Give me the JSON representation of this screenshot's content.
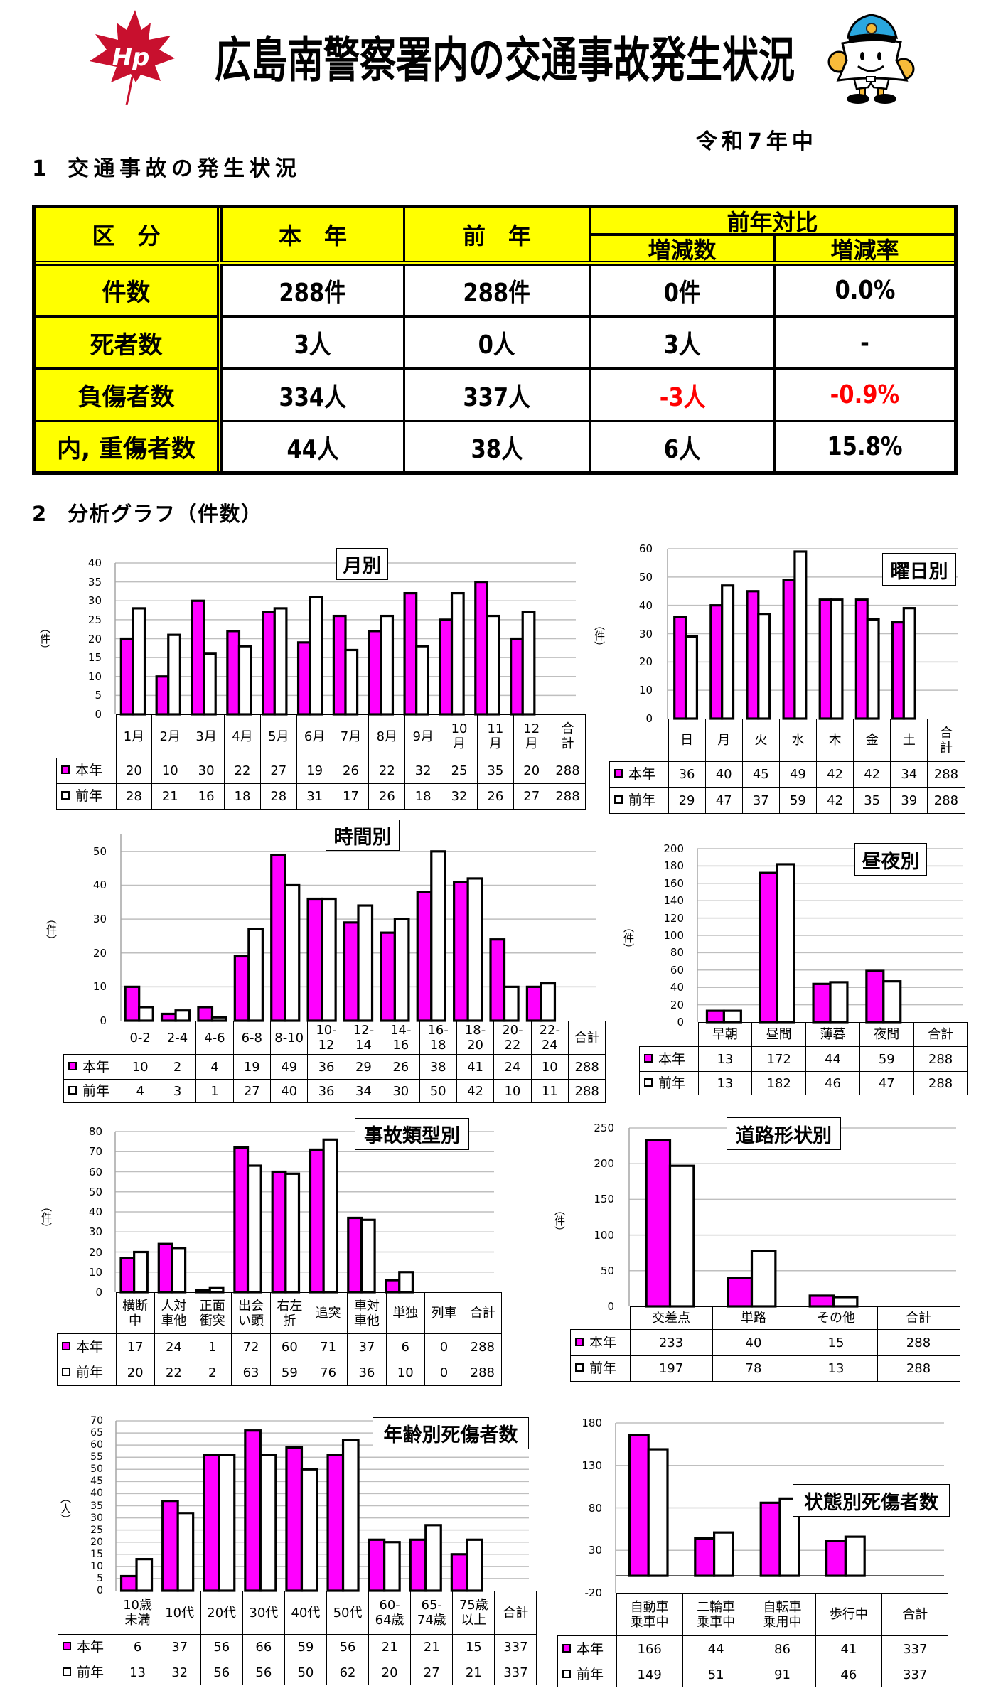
{
  "header": {
    "title": "広島南警察署内の交通事故発生状況",
    "period": "令和7年中",
    "logo_text": "Hp"
  },
  "sections": {
    "s1": {
      "number": "1",
      "text": "交通事故の発生状況"
    },
    "s2": {
      "number": "2",
      "text": "分析グラフ（件数）"
    }
  },
  "colors": {
    "this_year": "#FF00FF",
    "last_year": "#FFFFFF",
    "header_bg": "#FFFF00",
    "negative": "#FF0000",
    "gridline": "#BFBFBF",
    "axis": "#A6A6A6"
  },
  "summary": {
    "headers": {
      "category": "区　分",
      "this_year": "本　年",
      "last_year": "前　年",
      "comparison": "前年対比",
      "change": "増減数",
      "rate": "増減率"
    },
    "rows": [
      {
        "label": "件数",
        "this_year": "288件",
        "last_year": "288件",
        "change": "0件",
        "rate": "0.0%"
      },
      {
        "label": "死者数",
        "this_year": "3人",
        "last_year": "0人",
        "change": "3人",
        "rate": "-"
      },
      {
        "label": "負傷者数",
        "this_year": "334人",
        "last_year": "337人",
        "change": "-3人",
        "rate": "-0.9%"
      },
      {
        "label": "内, 重傷者数",
        "this_year": "44人",
        "last_year": "38人",
        "change": "6人",
        "rate": "15.8%"
      }
    ]
  },
  "chart_data": [
    {
      "type": "bar",
      "title": "月別",
      "xlabel": "",
      "ylabel": "（件）",
      "ylim": [
        0,
        40
      ],
      "yticks": [
        0,
        5,
        10,
        15,
        20,
        25,
        30,
        35,
        40
      ],
      "grid": true,
      "legend_position": "data-table-left",
      "categories": [
        "1月",
        "2月",
        "3月",
        "4月",
        "5月",
        "6月",
        "7月",
        "8月",
        "9月",
        "10\n月",
        "11\n月",
        "12\n月"
      ],
      "total_label": "合\n計",
      "series": [
        {
          "name": "本年",
          "values": [
            20,
            10,
            30,
            22,
            27,
            19,
            26,
            22,
            32,
            25,
            35,
            20
          ],
          "total": 288
        },
        {
          "name": "前年",
          "values": [
            28,
            21,
            16,
            18,
            28,
            31,
            17,
            26,
            18,
            32,
            26,
            27
          ],
          "total": 288
        }
      ]
    },
    {
      "type": "bar",
      "title": "曜日別",
      "xlabel": "",
      "ylabel": "（件）",
      "ylim": [
        0,
        60
      ],
      "yticks": [
        0,
        10,
        20,
        30,
        40,
        50,
        60
      ],
      "grid": true,
      "legend_position": "data-table-left",
      "categories": [
        "日",
        "月",
        "火",
        "水",
        "木",
        "金",
        "土"
      ],
      "total_label": "合\n計",
      "series": [
        {
          "name": "本年",
          "values": [
            36,
            40,
            45,
            49,
            42,
            42,
            34
          ],
          "total": 288
        },
        {
          "name": "前年",
          "values": [
            29,
            47,
            37,
            59,
            42,
            35,
            39
          ],
          "total": 288
        }
      ]
    },
    {
      "type": "bar",
      "title": "時間別",
      "xlabel": "",
      "ylabel": "（件）",
      "ylim": [
        0,
        55
      ],
      "yticks": [
        0,
        10,
        20,
        30,
        40,
        50
      ],
      "grid": true,
      "legend_position": "data-table-left",
      "categories": [
        "0-2",
        "2-4",
        "4-6",
        "6-8",
        "8-10",
        "10-\n12",
        "12-\n14",
        "14-\n16",
        "16-\n18",
        "18-\n20",
        "20-\n22",
        "22-\n24"
      ],
      "total_label": "合計",
      "series": [
        {
          "name": "本年",
          "values": [
            10,
            2,
            4,
            19,
            49,
            36,
            29,
            26,
            38,
            41,
            24,
            10
          ],
          "total": 288
        },
        {
          "name": "前年",
          "values": [
            4,
            3,
            1,
            27,
            40,
            36,
            34,
            30,
            50,
            42,
            10,
            11
          ],
          "total": 288
        }
      ]
    },
    {
      "type": "bar",
      "title": "昼夜別",
      "xlabel": "",
      "ylabel": "（件）",
      "ylim": [
        0,
        200
      ],
      "yticks": [
        0,
        20,
        40,
        60,
        80,
        100,
        120,
        140,
        160,
        180,
        200
      ],
      "grid": true,
      "legend_position": "data-table-left",
      "categories": [
        "早朝",
        "昼間",
        "薄暮",
        "夜間"
      ],
      "total_label": "合計",
      "series": [
        {
          "name": "本年",
          "values": [
            13,
            172,
            44,
            59
          ],
          "total": 288
        },
        {
          "name": "前年",
          "values": [
            13,
            182,
            46,
            47
          ],
          "total": 288
        }
      ]
    },
    {
      "type": "bar",
      "title": "事故類型別",
      "xlabel": "",
      "ylabel": "（件）",
      "ylim": [
        0,
        80
      ],
      "yticks": [
        0,
        10,
        20,
        30,
        40,
        50,
        60,
        70,
        80
      ],
      "grid": true,
      "legend_position": "data-table-left",
      "categories": [
        "横断\n中",
        "人対\n車他",
        "正面\n衝突",
        "出会\nい頭",
        "右左\n折",
        "追突",
        "車対\n車他",
        "単独",
        "列車"
      ],
      "total_label": "合計",
      "series": [
        {
          "name": "本年",
          "values": [
            17,
            24,
            1,
            72,
            60,
            71,
            37,
            6,
            0
          ],
          "total": 288
        },
        {
          "name": "前年",
          "values": [
            20,
            22,
            2,
            63,
            59,
            76,
            36,
            10,
            0
          ],
          "total": 288
        }
      ]
    },
    {
      "type": "bar",
      "title": "道路形状別",
      "xlabel": "",
      "ylabel": "（件）",
      "ylim": [
        0,
        250
      ],
      "yticks": [
        0,
        50,
        100,
        150,
        200,
        250
      ],
      "grid": true,
      "legend_position": "data-table-left",
      "categories": [
        "交差点",
        "単路",
        "その他"
      ],
      "total_label": "合計",
      "series": [
        {
          "name": "本年",
          "values": [
            233,
            40,
            15
          ],
          "total": 288
        },
        {
          "name": "前年",
          "values": [
            197,
            78,
            13
          ],
          "total": 288
        }
      ]
    },
    {
      "type": "bar",
      "title": "年齢別死傷者数",
      "xlabel": "",
      "ylabel": "（人）",
      "ylim": [
        0,
        70
      ],
      "yticks": [
        0,
        5,
        10,
        15,
        20,
        25,
        30,
        35,
        40,
        45,
        50,
        55,
        60,
        65,
        70
      ],
      "grid": true,
      "legend_position": "data-table-left",
      "categories": [
        "10歳\n未満",
        "10代",
        "20代",
        "30代",
        "40代",
        "50代",
        "60-\n64歳",
        "65-\n74歳",
        "75歳\n以上"
      ],
      "total_label": "合計",
      "series": [
        {
          "name": "本年",
          "values": [
            6,
            37,
            56,
            66,
            59,
            56,
            21,
            21,
            15
          ],
          "total": 337
        },
        {
          "name": "前年",
          "values": [
            13,
            32,
            56,
            56,
            50,
            62,
            20,
            27,
            21
          ],
          "total": 337
        }
      ]
    },
    {
      "type": "bar",
      "title": "状態別死傷者数",
      "xlabel": "",
      "ylabel": "",
      "ylim": [
        -20,
        180
      ],
      "yticks": [
        -20,
        30,
        80,
        130,
        180
      ],
      "grid": true,
      "legend_position": "data-table-left",
      "categories": [
        "自動車\n乗車中",
        "二輪車\n乗車中",
        "自転車\n乗用中",
        "歩行中"
      ],
      "total_label": "合計",
      "series": [
        {
          "name": "本年",
          "values": [
            166,
            44,
            86,
            41
          ],
          "total": 337
        },
        {
          "name": "前年",
          "values": [
            149,
            51,
            91,
            46
          ],
          "total": 337
        }
      ]
    }
  ]
}
